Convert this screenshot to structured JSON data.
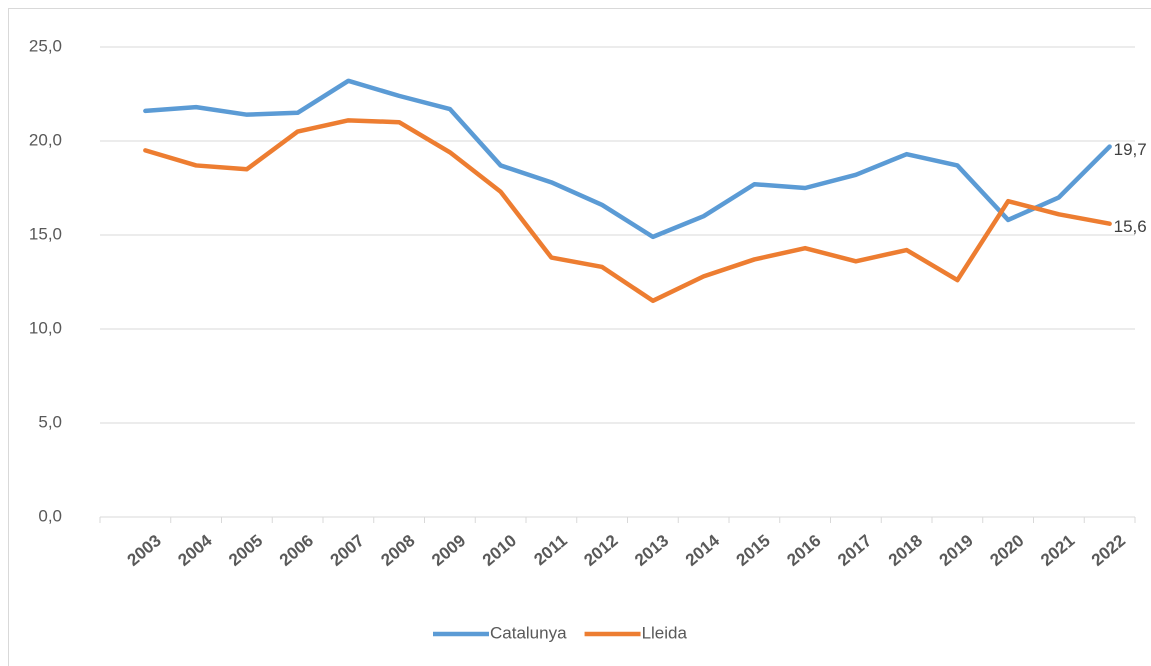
{
  "chart_data": {
    "type": "line",
    "categories": [
      "2003",
      "2004",
      "2005",
      "2006",
      "2007",
      "2008",
      "2009",
      "2010",
      "2011",
      "2012",
      "2013",
      "2014",
      "2015",
      "2016",
      "2017",
      "2018",
      "2019",
      "2020",
      "2021",
      "2022"
    ],
    "series": [
      {
        "name": "Catalunya",
        "color": "#5b9bd5",
        "values": [
          21.6,
          21.8,
          21.4,
          21.5,
          23.2,
          22.4,
          21.7,
          18.7,
          17.8,
          16.6,
          14.9,
          16.0,
          17.7,
          17.5,
          18.2,
          19.3,
          18.7,
          15.8,
          17.0,
          19.7
        ],
        "value_labels": [
          null,
          null,
          null,
          null,
          null,
          null,
          null,
          null,
          null,
          null,
          null,
          null,
          null,
          null,
          null,
          null,
          null,
          null,
          null,
          "19,7"
        ]
      },
      {
        "name": "Lleida",
        "color": "#ed7d31",
        "values": [
          19.5,
          18.7,
          18.5,
          20.5,
          21.1,
          21.0,
          19.4,
          17.3,
          13.8,
          13.3,
          11.5,
          12.8,
          13.7,
          14.3,
          13.6,
          14.2,
          12.6,
          16.8,
          16.1,
          15.6
        ],
        "value_labels": [
          null,
          null,
          null,
          null,
          null,
          null,
          null,
          null,
          null,
          null,
          null,
          null,
          null,
          null,
          null,
          null,
          null,
          null,
          null,
          "15,6"
        ]
      }
    ],
    "ylim": [
      0,
      25
    ],
    "yticks": [
      {
        "value": 0,
        "label": "0,0"
      },
      {
        "value": 5,
        "label": "5,0"
      },
      {
        "value": 10,
        "label": "10,0"
      },
      {
        "value": 15,
        "label": "15,0"
      },
      {
        "value": 20,
        "label": "20,0"
      },
      {
        "value": 25,
        "label": "25,0"
      }
    ],
    "grid": true,
    "legend": "bottom"
  }
}
